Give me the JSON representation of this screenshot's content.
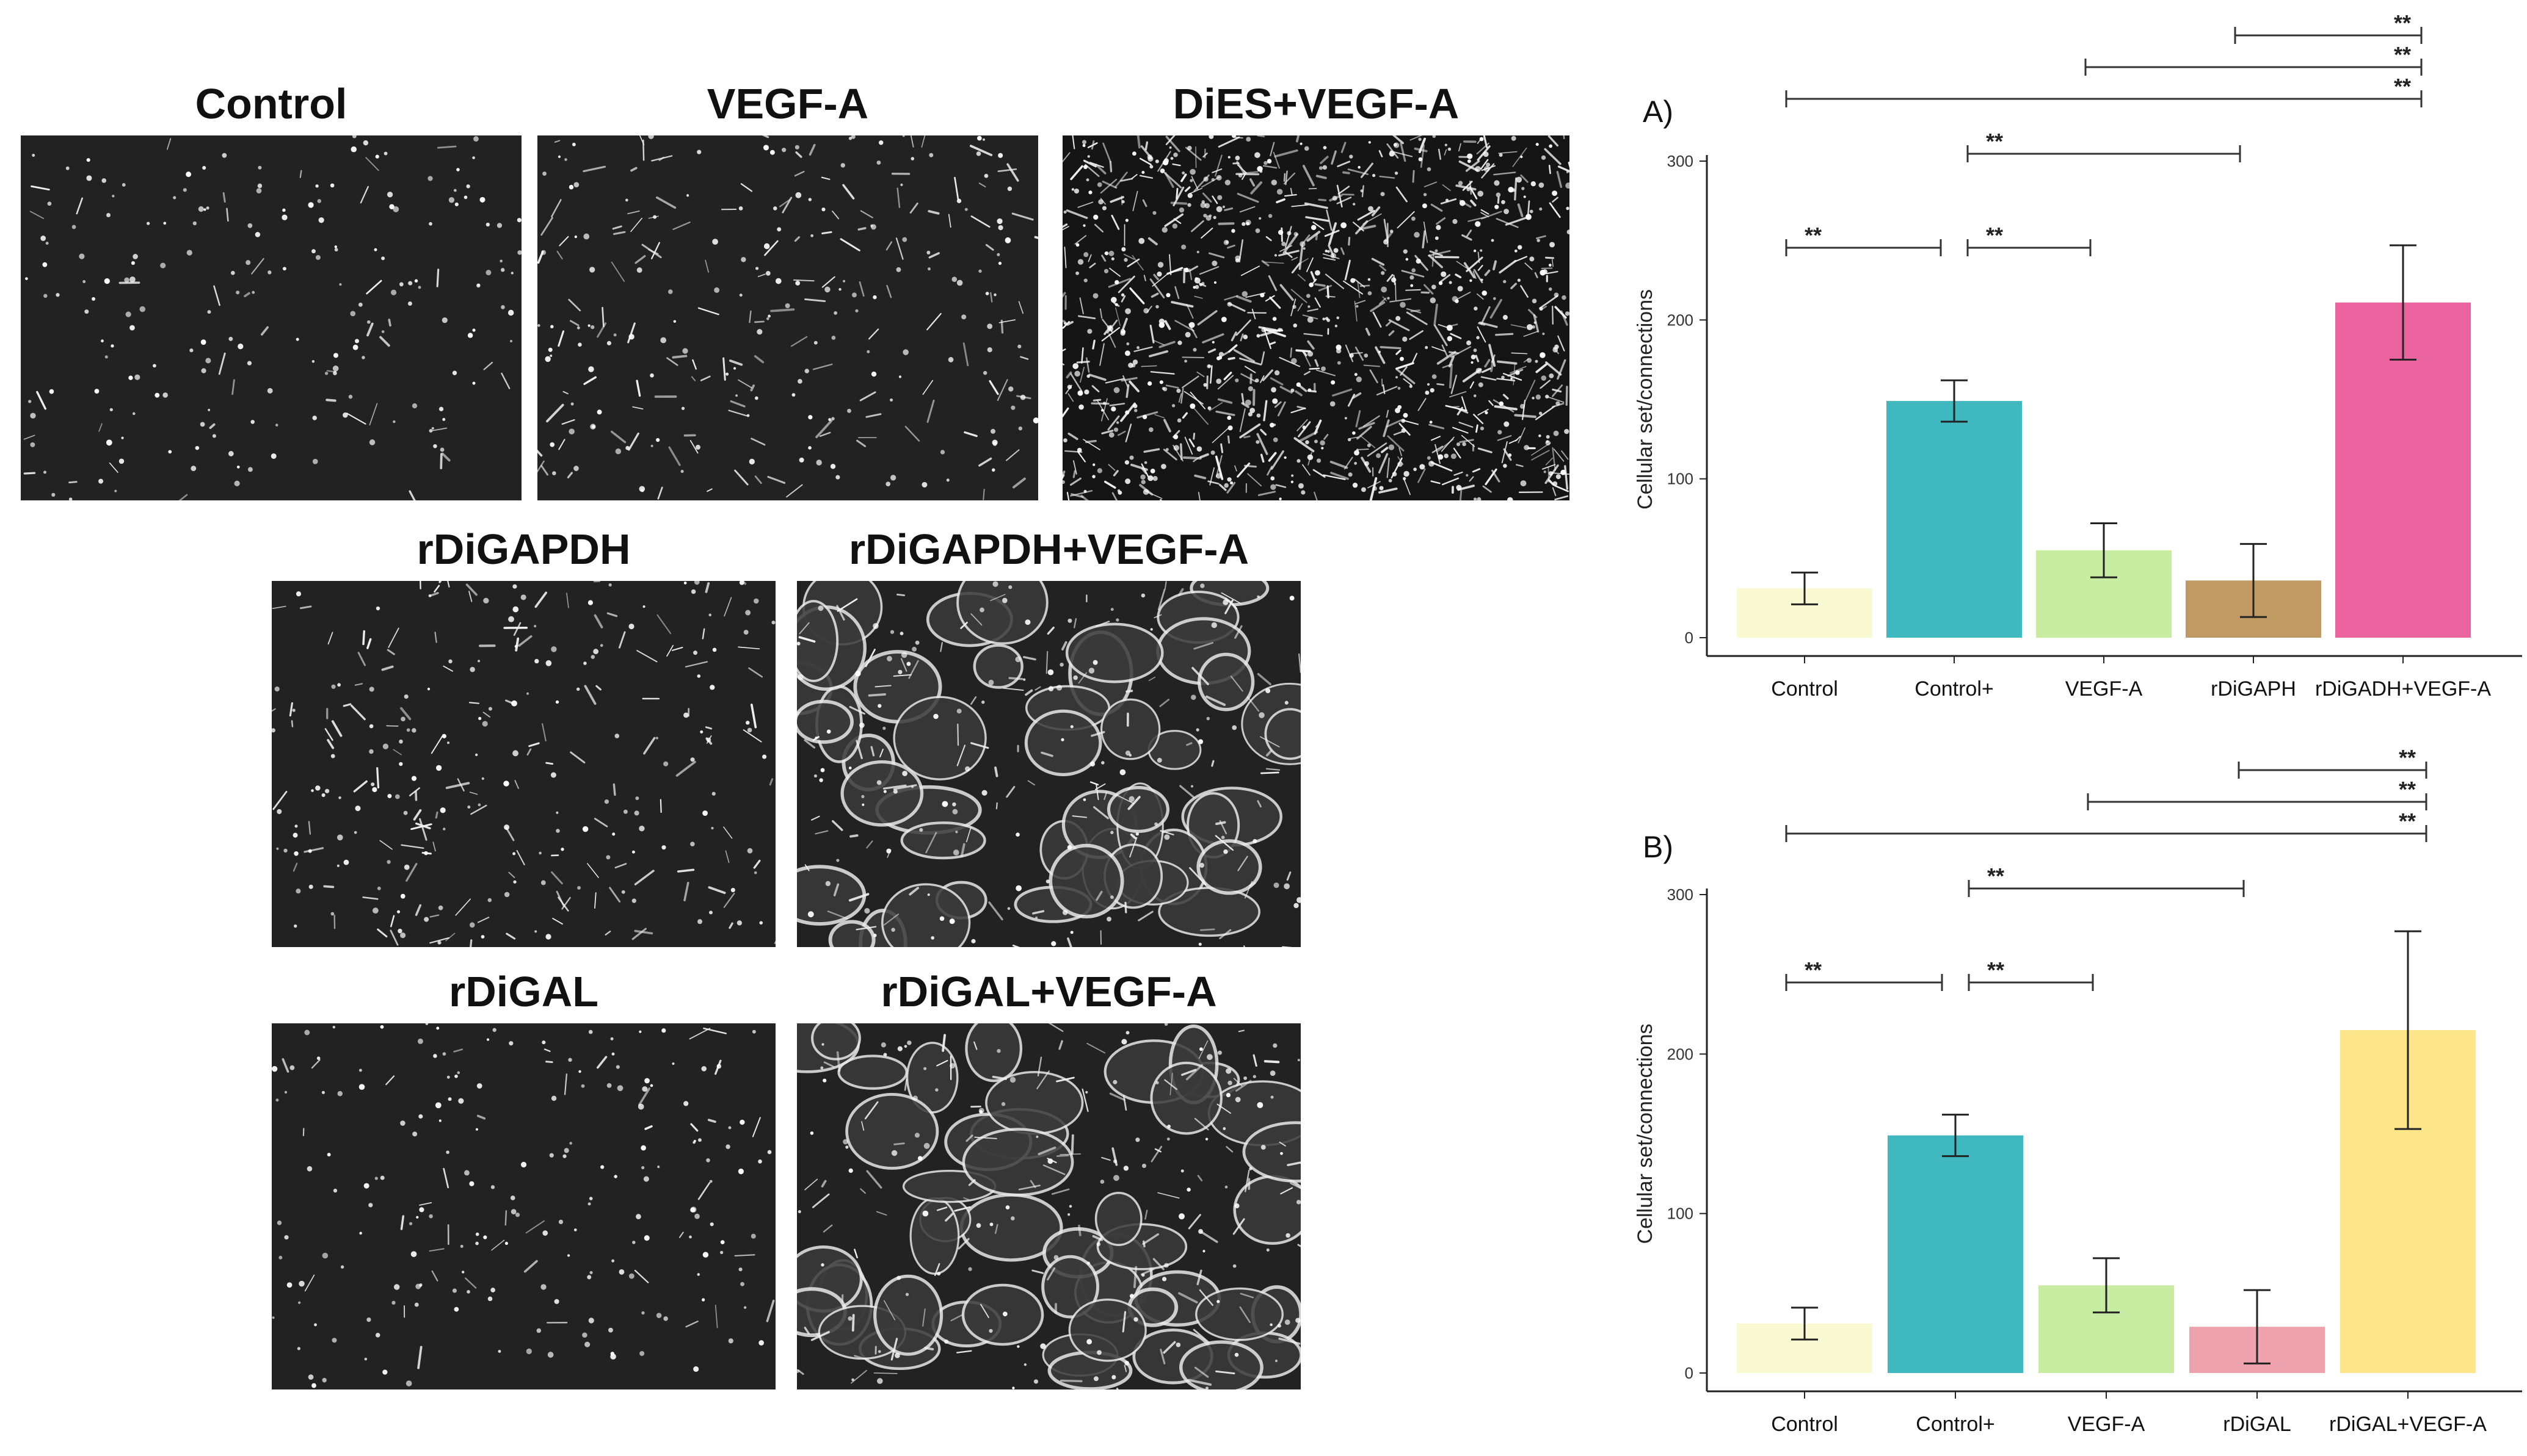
{
  "micrographs": [
    {
      "id": "control",
      "title": "Control",
      "density": "sparse"
    },
    {
      "id": "vegfa",
      "title": "VEGF-A",
      "density": "medium"
    },
    {
      "id": "dies_vegfa",
      "title": "DiES+VEGF-A",
      "density": "dense"
    },
    {
      "id": "rdigapdh",
      "title": "rDiGAPDH",
      "density": "medium"
    },
    {
      "id": "rdigapdh_vegfa",
      "title": "rDiGAPDH+VEGF-A",
      "density": "network"
    },
    {
      "id": "rdigal",
      "title": "rDiGAL",
      "density": "sparse"
    },
    {
      "id": "rdigal_vegfa",
      "title": "rDiGAL+VEGF-A",
      "density": "network"
    }
  ],
  "chart_data": [
    {
      "panel": "A)",
      "type": "bar",
      "ylabel": "Cellular set/connections",
      "ylim": [
        0,
        300
      ],
      "yticks": [
        0,
        100,
        200,
        300
      ],
      "categories": [
        "Control",
        "Control+",
        "VEGF-A",
        "rDiGAPH",
        "rDiGADH+VEGF-A"
      ],
      "values": [
        31,
        149,
        55,
        36,
        211
      ],
      "errors": [
        10,
        13,
        17,
        23,
        36
      ],
      "colors": [
        "#fafad2",
        "#3fb8c0",
        "#c9eca3",
        "#bf9a62",
        "#ec649f"
      ],
      "significance": [
        {
          "from": 0,
          "to": 1,
          "label": "**"
        },
        {
          "from": 1,
          "to": 2,
          "label": "**"
        },
        {
          "from": 1,
          "to": 3,
          "label": "**"
        },
        {
          "from": 0,
          "to": 4,
          "label": "**"
        },
        {
          "from": 2,
          "to": 4,
          "label": "**"
        },
        {
          "from": 3,
          "to": 4,
          "label": "**"
        }
      ]
    },
    {
      "panel": "B)",
      "type": "bar",
      "ylabel": "Cellular set/connections",
      "ylim": [
        0,
        300
      ],
      "yticks": [
        0,
        100,
        200,
        300
      ],
      "categories": [
        "Control",
        "Control+",
        "VEGF-A",
        "rDiGAL",
        "rDiGAL+VEGF-A"
      ],
      "values": [
        31,
        149,
        55,
        29,
        215
      ],
      "errors": [
        10,
        13,
        17,
        23,
        62
      ],
      "colors": [
        "#fafad2",
        "#3fb8c0",
        "#c9eca3",
        "#eea2ad",
        "#fde68a"
      ],
      "significance": [
        {
          "from": 0,
          "to": 1,
          "label": "**"
        },
        {
          "from": 1,
          "to": 2,
          "label": "**"
        },
        {
          "from": 1,
          "to": 3,
          "label": "**"
        },
        {
          "from": 0,
          "to": 4,
          "label": "**"
        },
        {
          "from": 2,
          "to": 4,
          "label": "**"
        },
        {
          "from": 3,
          "to": 4,
          "label": "**"
        }
      ]
    }
  ]
}
